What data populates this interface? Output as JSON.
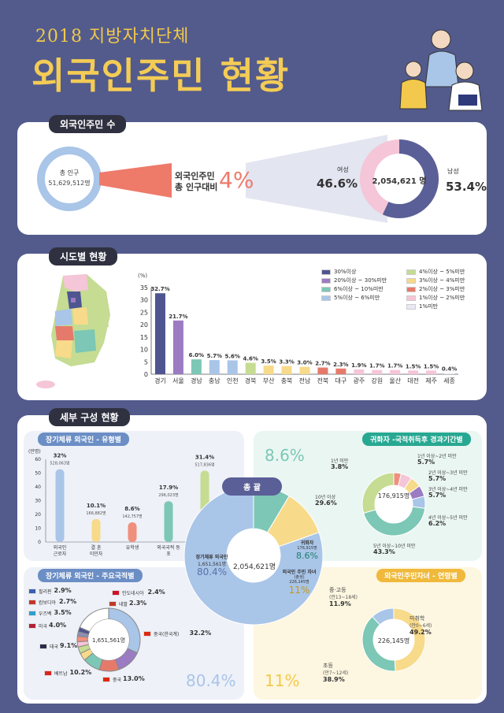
{
  "header": {
    "subtitle": "2018 지방자치단체",
    "title": "외국인주민 현황"
  },
  "section1": {
    "pill": "외국인주민 수",
    "total_pop_label": "총 인구",
    "total_pop_value": "51,629,512명",
    "ratio_label_1": "외국인주민",
    "ratio_label_2": "총 인구대비",
    "ratio_value": "4%",
    "foreign_total": "2,054,621 명",
    "female_label": "여성",
    "female_pct": "46.6%",
    "male_label": "남성",
    "male_pct": "53.4%"
  },
  "section2": {
    "pill": "시도별 현황",
    "unit": "(%)",
    "legend": [
      {
        "label": "30%이상",
        "color": "#4f5590"
      },
      {
        "label": "20%이상 ~ 30%미만",
        "color": "#9b7bc2"
      },
      {
        "label": "6%이상 ~ 10%미만",
        "color": "#7cc7b5"
      },
      {
        "label": "5%이상 ~ 6%미만",
        "color": "#a9c5e8"
      },
      {
        "label": "4%이상 ~ 5%미만",
        "color": "#c5dc92"
      },
      {
        "label": "3%이상 ~ 4%미만",
        "color": "#f7da8a"
      },
      {
        "label": "2%이상 ~ 3%미만",
        "color": "#e67a6a"
      },
      {
        "label": "1%이상 ~ 2%미만",
        "color": "#f5c5d8"
      },
      {
        "label": "1%미만",
        "color": "#e9e8f5"
      }
    ]
  },
  "chart_data": [
    {
      "type": "bar",
      "title": "시도별 현황",
      "ylabel": "(%)",
      "ylim": [
        0,
        35
      ],
      "yticks": [
        0,
        5,
        10,
        15,
        20,
        25,
        30,
        35
      ],
      "categories": [
        "경기",
        "서울",
        "경남",
        "충남",
        "인천",
        "경북",
        "부산",
        "충북",
        "전남",
        "전북",
        "대구",
        "광주",
        "강원",
        "울산",
        "대전",
        "제주",
        "세종"
      ],
      "values": [
        32.7,
        21.7,
        6.0,
        5.7,
        5.6,
        4.6,
        3.5,
        3.3,
        3.0,
        2.7,
        2.3,
        1.9,
        1.7,
        1.7,
        1.5,
        1.5,
        0.4
      ],
      "labels": [
        "32.7%",
        "21.7%",
        "6.0%",
        "5.7%",
        "5.6%",
        "4.6%",
        "3.5%",
        "3.3%",
        "3.0%",
        "2.7%",
        "2.3%",
        "1.9%",
        "1.7%",
        "1.7%",
        "1.5%",
        "1.5%",
        "0.4%"
      ],
      "colors": [
        "#4f5590",
        "#9b7bc2",
        "#7cc7b5",
        "#a9c5e8",
        "#a9c5e8",
        "#c5dc92",
        "#f7da8a",
        "#f7da8a",
        "#f7da8a",
        "#e67a6a",
        "#e67a6a",
        "#f5c5d8",
        "#f5c5d8",
        "#f5c5d8",
        "#f5c5d8",
        "#f5c5d8",
        "#e9e8f5"
      ]
    },
    {
      "type": "bar",
      "title": "장기체류 외국인 - 유형별",
      "ylabel": "(만명)",
      "ylim": [
        0,
        60
      ],
      "yticks": [
        0,
        10,
        20,
        30,
        40,
        50,
        60
      ],
      "categories": [
        "외국인 근로자",
        "결 혼 이민자",
        "유학생",
        "외국국적 동 포",
        "기 타 외국인"
      ],
      "values": [
        52.8,
        16.7,
        14.3,
        29.6,
        51.8
      ],
      "pct_labels": [
        "32%",
        "10.1%",
        "8.6%",
        "17.9%",
        "31.4%"
      ],
      "count_labels": [
        "528,063명",
        "166,882명",
        "142,757명",
        "296,023명",
        "517,836명"
      ],
      "colors": [
        "#a9c5e8",
        "#f7da8a",
        "#f08f7d",
        "#7cc7b5",
        "#c5dc92"
      ]
    },
    {
      "type": "pie",
      "title": "총 괄",
      "center": "2,054,621명",
      "slices": [
        {
          "name": "장기체류 외국인",
          "count": "1,651,561명",
          "value": 80.4,
          "color": "#a9c5e8"
        },
        {
          "name": "귀화자",
          "count": "176,915명",
          "value": 8.6,
          "color": "#7cc7b5"
        },
        {
          "name": "외국인 주민 자녀 (출생)",
          "count": "226,145명",
          "value": 11.0,
          "color": "#f7da8a"
        }
      ]
    },
    {
      "type": "pie",
      "title": "귀화자 -국적취득후 경과기간별",
      "center": "176,915명",
      "slices": [
        {
          "name": "1년 미만",
          "value": 3.8,
          "color": "#f08f7d"
        },
        {
          "name": "1년 이상~2년 미만",
          "value": 5.7,
          "color": "#f5c5d8"
        },
        {
          "name": "2년 이상~3년 미만",
          "value": 5.7,
          "color": "#f7da8a"
        },
        {
          "name": "3년 이상~4년 미만",
          "value": 5.7,
          "color": "#9b7bc2"
        },
        {
          "name": "4년 이상~5년 미만",
          "value": 6.2,
          "color": "#a9c5e8"
        },
        {
          "name": "5년 이상~10년 미만",
          "value": 43.3,
          "color": "#7cc7b5"
        },
        {
          "name": "10년 이상",
          "value": 29.6,
          "color": "#c5dc92"
        }
      ]
    },
    {
      "type": "pie",
      "title": "장기체류 외국인 - 주요국적별",
      "center": "1,651,561명",
      "slices": [
        {
          "name": "중국(한국계)",
          "value": 32.2,
          "color": "#a9c5e8"
        },
        {
          "name": "중국",
          "value": 13.0,
          "color": "#9b7bc2"
        },
        {
          "name": "베트남",
          "value": 10.2,
          "color": "#e67a6a"
        },
        {
          "name": "태국",
          "value": 9.1,
          "color": "#7cc7b5"
        },
        {
          "name": "미국",
          "value": 4.0,
          "color": "#f7da8a"
        },
        {
          "name": "우즈벡",
          "value": 3.5,
          "color": "#c5dc92"
        },
        {
          "name": "캄보디아",
          "value": 2.7,
          "color": "#f5c5d8"
        },
        {
          "name": "필리핀",
          "value": 2.9,
          "color": "#f08f7d"
        },
        {
          "name": "인도네시아",
          "value": 2.4,
          "color": "#8c8fb5"
        },
        {
          "name": "네팔",
          "value": 2.3,
          "color": "#4f5590"
        },
        {
          "name": "기타",
          "value": 18.7,
          "color": "#ffffff"
        }
      ]
    },
    {
      "type": "pie",
      "title": "외국인주민자녀 - 연령별",
      "center": "226,145명",
      "slices": [
        {
          "name": "미취학 (만0~6세)",
          "value": 49.2,
          "color": "#f7da8a"
        },
        {
          "name": "초등 (만7~12세)",
          "value": 38.9,
          "color": "#7cc7b5"
        },
        {
          "name": "중·고등 (만13~18세)",
          "value": 11.9,
          "color": "#a9c5e8"
        }
      ]
    }
  ],
  "section3": {
    "pill": "세부 구성 현황",
    "type_title": "장기체류 외국인 - 유형별",
    "nation_title": "장기체류 외국인 - 주요국적별",
    "natural_title": "귀화자 -국적취득후 경과기간별",
    "children_title": "외국인주민자녀 - 연령별",
    "summary_title": "총 괄",
    "big_natural": "8.6%",
    "big_children": "11%",
    "big_long": "80.4%",
    "long_label": "장기체류 외국인",
    "long_count": "1,651,561명",
    "long_pct": "80.4%",
    "nat_label": "귀화자",
    "nat_count": "176,915명",
    "nat_pct": "8.6%",
    "child_label": "외국인 주민 자녀",
    "child_sub": "(출생)",
    "child_count": "226,145명",
    "child_pct": "11%",
    "summary_center": "2,054,621명",
    "nation_labels": [
      {
        "name": "필리핀",
        "pct": "2.9%"
      },
      {
        "name": "캄보디아",
        "pct": "2.7%"
      },
      {
        "name": "우즈벡",
        "pct": "3.5%"
      },
      {
        "name": "미국",
        "pct": "4.0%"
      },
      {
        "name": "태국",
        "pct": "9.1%"
      },
      {
        "name": "베트남",
        "pct": "10.2%"
      },
      {
        "name": "중국",
        "pct": "13.0%"
      },
      {
        "name": "중국(한국계)",
        "pct": "32.2%"
      },
      {
        "name": "네팔",
        "pct": "2.3%"
      },
      {
        "name": "인도네시아",
        "pct": "2.4%"
      }
    ],
    "natural_labels": [
      {
        "name": "1년 미만",
        "pct": "3.8%"
      },
      {
        "name": "1년 이상~2년 미만",
        "pct": "5.7%"
      },
      {
        "name": "2년 이상~3년 미만",
        "pct": "5.7%"
      },
      {
        "name": "3년 이상~4년 미만",
        "pct": "5.7%"
      },
      {
        "name": "4년 이상~5년 미만",
        "pct": "6.2%"
      },
      {
        "name": "5년 이상~10년 미만",
        "pct": "43.3%"
      },
      {
        "name": "10년 이상",
        "pct": "29.6%"
      }
    ],
    "children_labels": [
      {
        "name": "중·고등",
        "sub": "(만13~18세)",
        "pct": "11.9%"
      },
      {
        "name": "미취학",
        "sub": "(만0~6세)",
        "pct": "49.2%"
      },
      {
        "name": "초등",
        "sub": "(만7~12세)",
        "pct": "38.9%"
      }
    ]
  }
}
